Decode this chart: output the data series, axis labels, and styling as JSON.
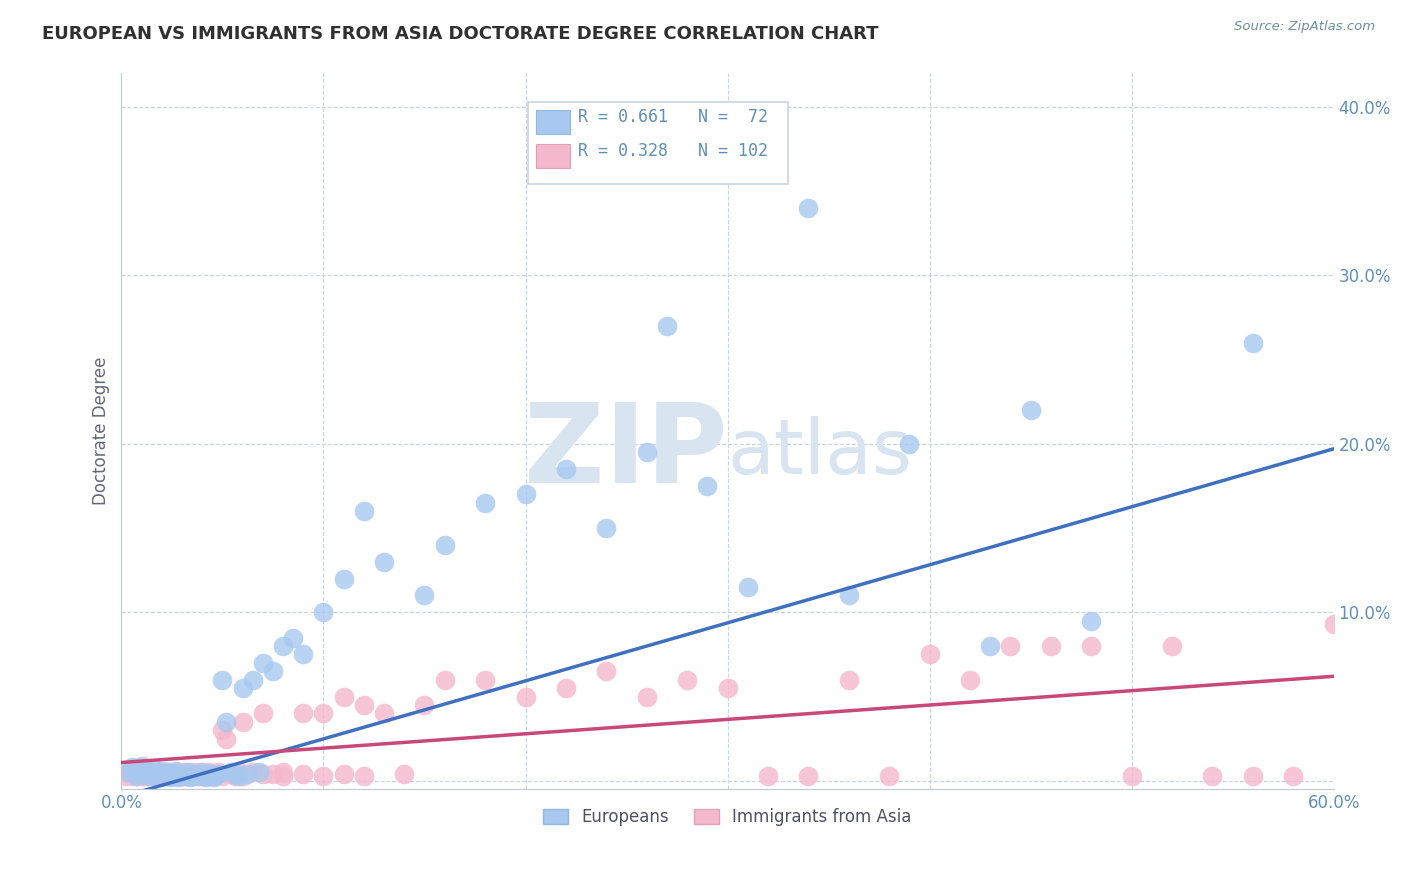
{
  "title": "EUROPEAN VS IMMIGRANTS FROM ASIA DOCTORATE DEGREE CORRELATION CHART",
  "source": "Source: ZipAtlas.com",
  "ylabel": "Doctorate Degree",
  "xlim": [
    0.0,
    0.6
  ],
  "ylim": [
    -0.005,
    0.42
  ],
  "blue_color": "#A8C8F0",
  "pink_color": "#F4B8CC",
  "blue_line_color": "#4070C0",
  "pink_line_color": "#C84878",
  "title_color": "#303030",
  "tick_color": "#6090B8",
  "watermark_color": "#D8E4F0",
  "eu_x": [
    0.003,
    0.005,
    0.007,
    0.008,
    0.01,
    0.01,
    0.012,
    0.013,
    0.014,
    0.015,
    0.016,
    0.017,
    0.018,
    0.019,
    0.02,
    0.021,
    0.022,
    0.023,
    0.024,
    0.025,
    0.026,
    0.027,
    0.028,
    0.03,
    0.032,
    0.033,
    0.034,
    0.035,
    0.036,
    0.038,
    0.04,
    0.041,
    0.042,
    0.044,
    0.045,
    0.046,
    0.048,
    0.05,
    0.052,
    0.054,
    0.056,
    0.058,
    0.06,
    0.062,
    0.065,
    0.068,
    0.07,
    0.075,
    0.08,
    0.085,
    0.09,
    0.1,
    0.11,
    0.12,
    0.13,
    0.15,
    0.16,
    0.18,
    0.2,
    0.22,
    0.24,
    0.26,
    0.27,
    0.29,
    0.31,
    0.34,
    0.36,
    0.39,
    0.43,
    0.45,
    0.48,
    0.56
  ],
  "eu_y": [
    0.005,
    0.008,
    0.003,
    0.006,
    0.004,
    0.009,
    0.006,
    0.003,
    0.005,
    0.004,
    0.007,
    0.003,
    0.005,
    0.002,
    0.006,
    0.004,
    0.003,
    0.005,
    0.002,
    0.004,
    0.003,
    0.006,
    0.002,
    0.004,
    0.003,
    0.005,
    0.002,
    0.003,
    0.004,
    0.003,
    0.005,
    0.003,
    0.002,
    0.004,
    0.003,
    0.002,
    0.004,
    0.06,
    0.035,
    0.005,
    0.004,
    0.003,
    0.055,
    0.004,
    0.06,
    0.005,
    0.07,
    0.065,
    0.08,
    0.085,
    0.075,
    0.1,
    0.12,
    0.16,
    0.13,
    0.11,
    0.14,
    0.165,
    0.17,
    0.185,
    0.15,
    0.195,
    0.27,
    0.175,
    0.115,
    0.34,
    0.11,
    0.2,
    0.08,
    0.22,
    0.095,
    0.26
  ],
  "as_x": [
    0.002,
    0.004,
    0.005,
    0.007,
    0.008,
    0.009,
    0.01,
    0.011,
    0.012,
    0.013,
    0.014,
    0.015,
    0.016,
    0.017,
    0.018,
    0.019,
    0.02,
    0.021,
    0.022,
    0.023,
    0.024,
    0.025,
    0.026,
    0.027,
    0.028,
    0.029,
    0.03,
    0.031,
    0.032,
    0.033,
    0.034,
    0.035,
    0.036,
    0.037,
    0.038,
    0.039,
    0.04,
    0.041,
    0.042,
    0.043,
    0.044,
    0.045,
    0.046,
    0.048,
    0.05,
    0.052,
    0.054,
    0.056,
    0.058,
    0.06,
    0.065,
    0.07,
    0.075,
    0.08,
    0.09,
    0.1,
    0.11,
    0.12,
    0.13,
    0.15,
    0.16,
    0.18,
    0.2,
    0.22,
    0.24,
    0.26,
    0.28,
    0.3,
    0.32,
    0.34,
    0.36,
    0.38,
    0.4,
    0.42,
    0.44,
    0.46,
    0.48,
    0.5,
    0.52,
    0.54,
    0.56,
    0.58,
    0.6,
    0.005,
    0.01,
    0.015,
    0.02,
    0.025,
    0.03,
    0.035,
    0.04,
    0.045,
    0.05,
    0.055,
    0.06,
    0.07,
    0.08,
    0.09,
    0.1,
    0.11,
    0.12,
    0.14
  ],
  "as_y": [
    0.003,
    0.005,
    0.004,
    0.003,
    0.006,
    0.004,
    0.003,
    0.005,
    0.004,
    0.003,
    0.005,
    0.004,
    0.003,
    0.004,
    0.003,
    0.005,
    0.003,
    0.004,
    0.003,
    0.005,
    0.003,
    0.004,
    0.003,
    0.005,
    0.003,
    0.004,
    0.003,
    0.005,
    0.003,
    0.004,
    0.003,
    0.005,
    0.003,
    0.004,
    0.003,
    0.005,
    0.003,
    0.004,
    0.003,
    0.005,
    0.003,
    0.004,
    0.003,
    0.005,
    0.03,
    0.025,
    0.004,
    0.003,
    0.005,
    0.035,
    0.005,
    0.04,
    0.004,
    0.005,
    0.04,
    0.04,
    0.05,
    0.045,
    0.04,
    0.045,
    0.06,
    0.06,
    0.05,
    0.055,
    0.065,
    0.05,
    0.06,
    0.055,
    0.003,
    0.003,
    0.06,
    0.003,
    0.075,
    0.06,
    0.08,
    0.08,
    0.08,
    0.003,
    0.08,
    0.003,
    0.003,
    0.003,
    0.093,
    0.003,
    0.003,
    0.004,
    0.003,
    0.004,
    0.003,
    0.004,
    0.003,
    0.004,
    0.003,
    0.004,
    0.003,
    0.004,
    0.003,
    0.004,
    0.003,
    0.004,
    0.003,
    0.004
  ],
  "eu_line_x0": -0.01,
  "eu_line_y0": -0.013,
  "eu_line_x1": 0.6,
  "eu_line_y1": 0.197,
  "as_line_x0": -0.01,
  "as_line_y0": 0.01,
  "as_line_x1": 0.6,
  "as_line_y1": 0.062
}
